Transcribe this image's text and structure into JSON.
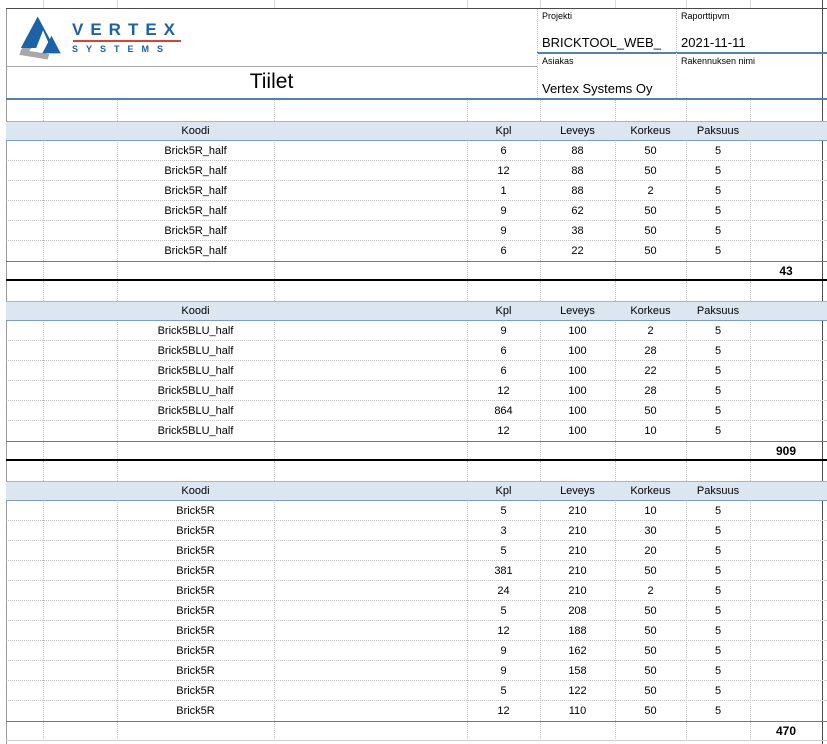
{
  "title": "Tiilet",
  "logo": {
    "brand": "VERTEX",
    "sub": "SYSTEMS"
  },
  "header": {
    "fields": [
      {
        "label": "Projekti",
        "value": "BRICKTOOL_WEB_"
      },
      {
        "label": "Raporttipvm",
        "value": "2021-11-11"
      },
      {
        "label": "Asiakas",
        "value": "Vertex Systems Oy"
      },
      {
        "label": "Rakennuksen nimi",
        "value": ""
      }
    ]
  },
  "columns": [
    "Koodi",
    "Kpl",
    "Leveys",
    "Korkeus",
    "Paksuus"
  ],
  "tables": [
    {
      "rows": [
        [
          "Brick5R_half",
          "6",
          "88",
          "50",
          "5"
        ],
        [
          "Brick5R_half",
          "12",
          "88",
          "50",
          "5"
        ],
        [
          "Brick5R_half",
          "1",
          "88",
          "2",
          "5"
        ],
        [
          "Brick5R_half",
          "9",
          "62",
          "50",
          "5"
        ],
        [
          "Brick5R_half",
          "9",
          "38",
          "50",
          "5"
        ],
        [
          "Brick5R_half",
          "6",
          "22",
          "50",
          "5"
        ]
      ],
      "total": "43"
    },
    {
      "rows": [
        [
          "Brick5BLU_half",
          "9",
          "100",
          "2",
          "5"
        ],
        [
          "Brick5BLU_half",
          "6",
          "100",
          "28",
          "5"
        ],
        [
          "Brick5BLU_half",
          "6",
          "100",
          "22",
          "5"
        ],
        [
          "Brick5BLU_half",
          "12",
          "100",
          "28",
          "5"
        ],
        [
          "Brick5BLU_half",
          "864",
          "100",
          "50",
          "5"
        ],
        [
          "Brick5BLU_half",
          "12",
          "100",
          "10",
          "5"
        ]
      ],
      "total": "909"
    },
    {
      "rows": [
        [
          "Brick5R",
          "5",
          "210",
          "10",
          "5"
        ],
        [
          "Brick5R",
          "3",
          "210",
          "30",
          "5"
        ],
        [
          "Brick5R",
          "5",
          "210",
          "20",
          "5"
        ],
        [
          "Brick5R",
          "381",
          "210",
          "50",
          "5"
        ],
        [
          "Brick5R",
          "24",
          "210",
          "2",
          "5"
        ],
        [
          "Brick5R",
          "5",
          "208",
          "50",
          "5"
        ],
        [
          "Brick5R",
          "12",
          "188",
          "50",
          "5"
        ],
        [
          "Brick5R",
          "9",
          "162",
          "50",
          "5"
        ],
        [
          "Brick5R",
          "9",
          "158",
          "50",
          "5"
        ],
        [
          "Brick5R",
          "5",
          "122",
          "50",
          "5"
        ],
        [
          "Brick5R",
          "12",
          "110",
          "50",
          "5"
        ]
      ],
      "total": "470"
    }
  ],
  "colors": {
    "accent_blue": "#4F81BD",
    "header_fill": "#DCE6F1",
    "logo_blue": "#1B62A8",
    "logo_red": "#E0402F"
  }
}
